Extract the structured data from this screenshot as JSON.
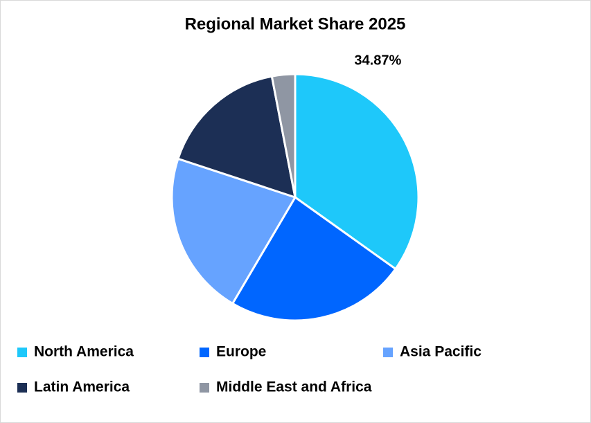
{
  "chart_data": {
    "type": "pie",
    "title": "Regional Market Share 2025",
    "categories": [
      "North America",
      "Europe",
      "Asia Pacific",
      "Latin America",
      "Middle East and Africa"
    ],
    "values": [
      34.87,
      23.6,
      21.6,
      16.9,
      3.03
    ],
    "value_labels": [
      "34.87%",
      null,
      null,
      null,
      null
    ],
    "colors": [
      "#1ec8fa",
      "#0066ff",
      "#66a3ff",
      "#1c2f55",
      "#8f96a3"
    ],
    "legend": "bottom"
  }
}
